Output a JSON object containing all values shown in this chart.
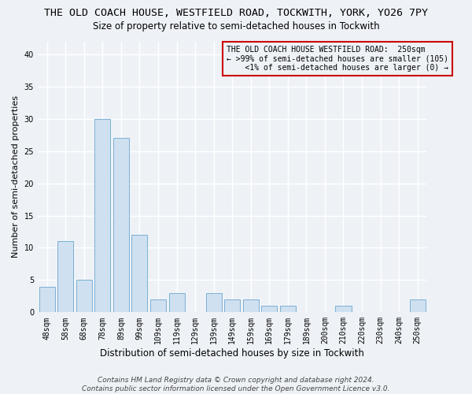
{
  "title_line1": "THE OLD COACH HOUSE, WESTFIELD ROAD, TOCKWITH, YORK, YO26 7PY",
  "title_line2": "Size of property relative to semi-detached houses in Tockwith",
  "xlabel": "Distribution of semi-detached houses by size in Tockwith",
  "ylabel": "Number of semi-detached properties",
  "categories": [
    "48sqm",
    "58sqm",
    "68sqm",
    "78sqm",
    "89sqm",
    "99sqm",
    "109sqm",
    "119sqm",
    "129sqm",
    "139sqm",
    "149sqm",
    "159sqm",
    "169sqm",
    "179sqm",
    "189sqm",
    "200sqm",
    "210sqm",
    "220sqm",
    "230sqm",
    "240sqm",
    "250sqm"
  ],
  "values": [
    4,
    11,
    5,
    30,
    27,
    12,
    2,
    3,
    0,
    3,
    2,
    2,
    1,
    1,
    0,
    0,
    1,
    0,
    0,
    0,
    2
  ],
  "bar_color": "#cfe0f0",
  "bar_edge_color": "#7ab0d4",
  "ylim": [
    0,
    42
  ],
  "yticks": [
    0,
    5,
    10,
    15,
    20,
    25,
    30,
    35,
    40
  ],
  "annotation_box_text_line1": "THE OLD COACH HOUSE WESTFIELD ROAD:  250sqm",
  "annotation_box_text_line2": "← >99% of semi-detached houses are smaller (105)",
  "annotation_box_text_line3": "    <1% of semi-detached houses are larger (0) →",
  "annotation_box_edge_color": "#cc0000",
  "footer_line1": "Contains HM Land Registry data © Crown copyright and database right 2024.",
  "footer_line2": "Contains public sector information licensed under the Open Government Licence v3.0.",
  "bg_color": "#eef2f7",
  "grid_color": "#ffffff",
  "title_fontsize": 9.5,
  "subtitle_fontsize": 8.5,
  "xlabel_fontsize": 8.5,
  "ylabel_fontsize": 8,
  "tick_fontsize": 7,
  "annotation_fontsize": 7,
  "footer_fontsize": 6.5
}
